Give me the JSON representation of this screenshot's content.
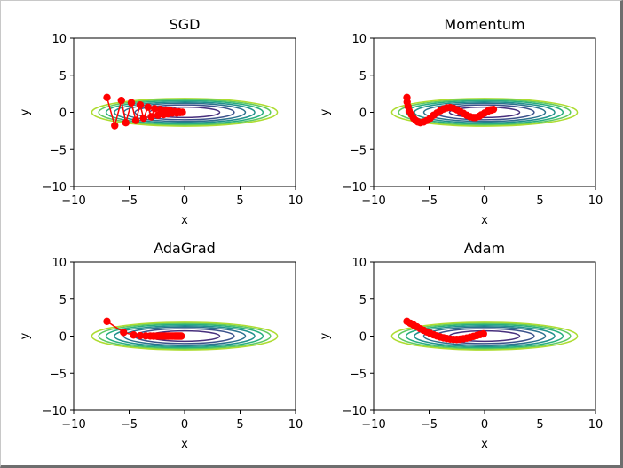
{
  "chart_data": [
    {
      "type": "line",
      "title": "SGD",
      "xlabel": "x",
      "ylabel": "y",
      "xlim": [
        -10,
        10
      ],
      "ylim": [
        -10,
        10
      ],
      "xticks": [
        -10,
        -5,
        0,
        5,
        10
      ],
      "yticks": [
        -10,
        -5,
        0,
        5,
        10
      ],
      "xtick_labels": [
        "−10",
        "−5",
        "0",
        "5",
        "10"
      ],
      "ytick_labels": [
        "−10",
        "−5",
        "0",
        "5",
        "10"
      ],
      "contour": {
        "function": "x^2/20 + y^2",
        "levels": [
          0.5,
          1.0,
          1.5,
          2.0,
          2.5,
          3.0,
          3.5
        ],
        "x_extent": [
          -10,
          10
        ]
      },
      "series": [
        {
          "color": "#ff0000",
          "marker": "o",
          "x": [
            -7.0,
            -6.3,
            -5.7,
            -5.3,
            -4.8,
            -4.4,
            -4.0,
            -3.7,
            -3.3,
            -3.0,
            -2.7,
            -2.4,
            -2.2,
            -1.9,
            -1.7,
            -1.5,
            -1.3,
            -1.1,
            -0.9,
            -0.7,
            -0.5,
            -0.4,
            -0.2
          ],
          "y": [
            2.0,
            -1.8,
            1.6,
            -1.4,
            1.3,
            -1.1,
            1.0,
            -0.8,
            0.7,
            -0.6,
            0.5,
            -0.4,
            0.4,
            -0.3,
            0.3,
            -0.2,
            0.2,
            -0.1,
            0.1,
            -0.1,
            0.05,
            -0.03,
            0.0
          ]
        }
      ]
    },
    {
      "type": "line",
      "title": "Momentum",
      "xlabel": "x",
      "ylabel": "y",
      "xlim": [
        -10,
        10
      ],
      "ylim": [
        -10,
        10
      ],
      "xticks": [
        -10,
        -5,
        0,
        5,
        10
      ],
      "yticks": [
        -10,
        -5,
        0,
        5,
        10
      ],
      "xtick_labels": [
        "−10",
        "−5",
        "0",
        "5",
        "10"
      ],
      "ytick_labels": [
        "−10",
        "−5",
        "0",
        "5",
        "10"
      ],
      "contour": {
        "function": "x^2/20 + y^2",
        "levels": [
          0.5,
          1.0,
          1.5,
          2.0,
          2.5,
          3.0,
          3.5
        ],
        "x_extent": [
          -10,
          10
        ]
      },
      "series": [
        {
          "color": "#ff0000",
          "marker": "o",
          "x": [
            -7.0,
            -6.98,
            -6.9,
            -6.8,
            -6.6,
            -6.4,
            -6.2,
            -6.0,
            -5.8,
            -5.5,
            -5.2,
            -4.9,
            -4.6,
            -4.3,
            -4.0,
            -3.7,
            -3.4,
            -3.1,
            -2.8,
            -2.5,
            -2.2,
            -1.9,
            -1.6,
            -1.3,
            -1.0,
            -0.8,
            -0.5,
            -0.3,
            0.0,
            0.3,
            0.6,
            0.8,
            0.6,
            0.4
          ],
          "y": [
            2.0,
            1.4,
            0.8,
            0.2,
            -0.3,
            -0.8,
            -1.1,
            -1.3,
            -1.4,
            -1.3,
            -1.1,
            -0.8,
            -0.4,
            -0.1,
            0.2,
            0.45,
            0.6,
            0.65,
            0.55,
            0.35,
            0.1,
            -0.15,
            -0.4,
            -0.6,
            -0.7,
            -0.7,
            -0.55,
            -0.35,
            -0.1,
            0.15,
            0.3,
            0.4,
            0.35,
            0.3
          ]
        }
      ]
    },
    {
      "type": "line",
      "title": "AdaGrad",
      "xlabel": "x",
      "ylabel": "y",
      "xlim": [
        -10,
        10
      ],
      "ylim": [
        -10,
        10
      ],
      "xticks": [
        -10,
        -5,
        0,
        5,
        10
      ],
      "yticks": [
        -10,
        -5,
        0,
        5,
        10
      ],
      "xtick_labels": [
        "−10",
        "−5",
        "0",
        "5",
        "10"
      ],
      "ytick_labels": [
        "−10",
        "−5",
        "0",
        "5",
        "10"
      ],
      "contour": {
        "function": "x^2/20 + y^2",
        "levels": [
          0.5,
          1.0,
          1.5,
          2.0,
          2.5,
          3.0,
          3.5
        ],
        "x_extent": [
          -10,
          10
        ]
      },
      "series": [
        {
          "color": "#ff0000",
          "marker": "o",
          "x": [
            -7.0,
            -5.5,
            -4.6,
            -4.0,
            -3.5,
            -3.1,
            -2.8,
            -2.5,
            -2.3,
            -2.1,
            -1.9,
            -1.7,
            -1.5,
            -1.35,
            -1.2,
            -1.05,
            -0.9,
            -0.8,
            -0.7,
            -0.6,
            -0.5,
            -0.4,
            -0.3
          ],
          "y": [
            2.0,
            0.5,
            0.15,
            0.05,
            0.02,
            0.01,
            0.0,
            0.0,
            0.0,
            0.0,
            0.0,
            0.0,
            0.0,
            0.0,
            0.0,
            0.0,
            0.0,
            0.0,
            0.0,
            0.0,
            0.0,
            0.0,
            0.0
          ]
        }
      ]
    },
    {
      "type": "line",
      "title": "Adam",
      "xlabel": "x",
      "ylabel": "y",
      "xlim": [
        -10,
        10
      ],
      "ylim": [
        -10,
        10
      ],
      "xticks": [
        -10,
        -5,
        0,
        5,
        10
      ],
      "yticks": [
        -10,
        -5,
        0,
        5,
        10
      ],
      "xtick_labels": [
        "−10",
        "−5",
        "0",
        "5",
        "10"
      ],
      "ytick_labels": [
        "−10",
        "−5",
        "0",
        "5",
        "10"
      ],
      "contour": {
        "function": "x^2/20 + y^2",
        "levels": [
          0.5,
          1.0,
          1.5,
          2.0,
          2.5,
          3.0,
          3.5
        ],
        "x_extent": [
          -10,
          10
        ]
      },
      "series": [
        {
          "color": "#ff0000",
          "marker": "o",
          "x": [
            -7.0,
            -6.7,
            -6.4,
            -6.1,
            -5.8,
            -5.5,
            -5.2,
            -4.9,
            -4.6,
            -4.3,
            -4.0,
            -3.7,
            -3.4,
            -3.1,
            -2.8,
            -2.5,
            -2.2,
            -1.9,
            -1.6,
            -1.3,
            -1.0,
            -0.7,
            -0.4,
            -0.1
          ],
          "y": [
            2.0,
            1.75,
            1.5,
            1.25,
            1.0,
            0.78,
            0.56,
            0.36,
            0.18,
            0.02,
            -0.12,
            -0.24,
            -0.33,
            -0.4,
            -0.44,
            -0.45,
            -0.42,
            -0.36,
            -0.27,
            -0.16,
            -0.04,
            0.08,
            0.2,
            0.3
          ]
        }
      ]
    }
  ],
  "colors": {
    "marker": "#ff0000",
    "contour": [
      "#472f7d",
      "#3b528b",
      "#2c728e",
      "#21918c",
      "#28ae80",
      "#5ec962",
      "#addc30"
    ]
  }
}
